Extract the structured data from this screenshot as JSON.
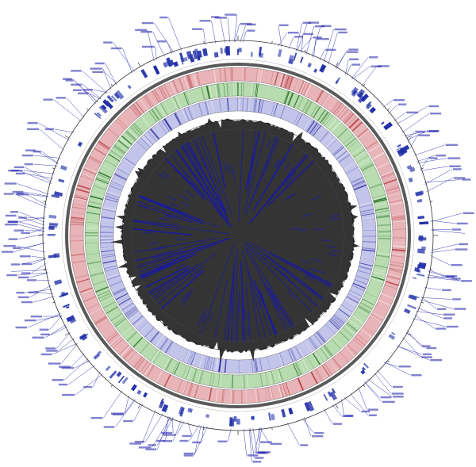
{
  "figure": {
    "colors": {
      "background": "#ffffff",
      "label": "#1a1aa8",
      "leader": "#2a2ab4",
      "ring_outline": "#333333",
      "backbone": "#5a5a5a",
      "feature": "#1f2ea8",
      "track_red": "#e8b4b8",
      "track_red_dark": "#b33a3a",
      "track_green": "#b8dcb0",
      "track_green_dark": "#1e6b1e",
      "track_blue": "#c2c4ea",
      "track_blue_dark": "#2a2aa0",
      "skew": "#111111",
      "chord": "#1a1aa0"
    },
    "tracks": [
      {
        "name": "outer-scale-ring"
      },
      {
        "name": "feature-glyph-ring"
      },
      {
        "name": "backbone-ring"
      },
      {
        "name": "red-heat-track"
      },
      {
        "name": "green-heat-track"
      },
      {
        "name": "blue-heat-track"
      },
      {
        "name": "gc-skew-track"
      },
      {
        "name": "inner-chord-ring"
      }
    ]
  }
}
